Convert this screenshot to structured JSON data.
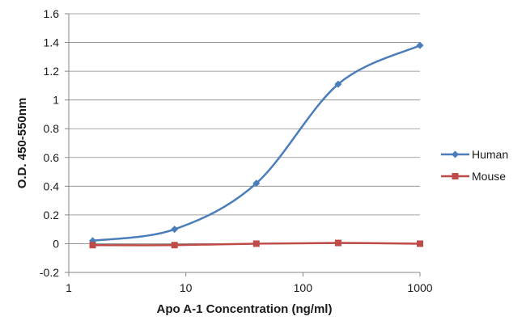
{
  "chart_data": {
    "type": "line",
    "title": "",
    "xlabel": "Apo A-1 Concentration  (ng/ml)",
    "ylabel": "O.D. 450-550nm",
    "xscale": "log",
    "xlim": [
      1,
      1000
    ],
    "ylim": [
      -0.2,
      1.6
    ],
    "x_ticks": [
      1,
      10,
      100,
      1000
    ],
    "x_tick_labels": [
      "1",
      "10",
      "100",
      "1000"
    ],
    "y_ticks": [
      -0.2,
      0,
      0.2,
      0.4,
      0.6,
      0.8,
      1,
      1.2,
      1.4,
      1.6
    ],
    "y_tick_labels": [
      "-0.2",
      "0",
      "0.2",
      "0.4",
      "0.6",
      "0.8",
      "1",
      "1.2",
      "1.4",
      "1.6"
    ],
    "grid": "horizontal",
    "legend_position": "right",
    "series": [
      {
        "name": "Human",
        "color": "#4a7ebb",
        "marker": "diamond",
        "smooth": true,
        "x": [
          1.6,
          8,
          40,
          200,
          1000
        ],
        "y": [
          0.02,
          0.1,
          0.42,
          1.11,
          1.38
        ]
      },
      {
        "name": "Mouse",
        "color": "#be4b48",
        "marker": "square",
        "smooth": true,
        "x": [
          1.6,
          8,
          40,
          200,
          1000
        ],
        "y": [
          -0.01,
          -0.01,
          0.0,
          0.005,
          0.0
        ]
      }
    ]
  }
}
